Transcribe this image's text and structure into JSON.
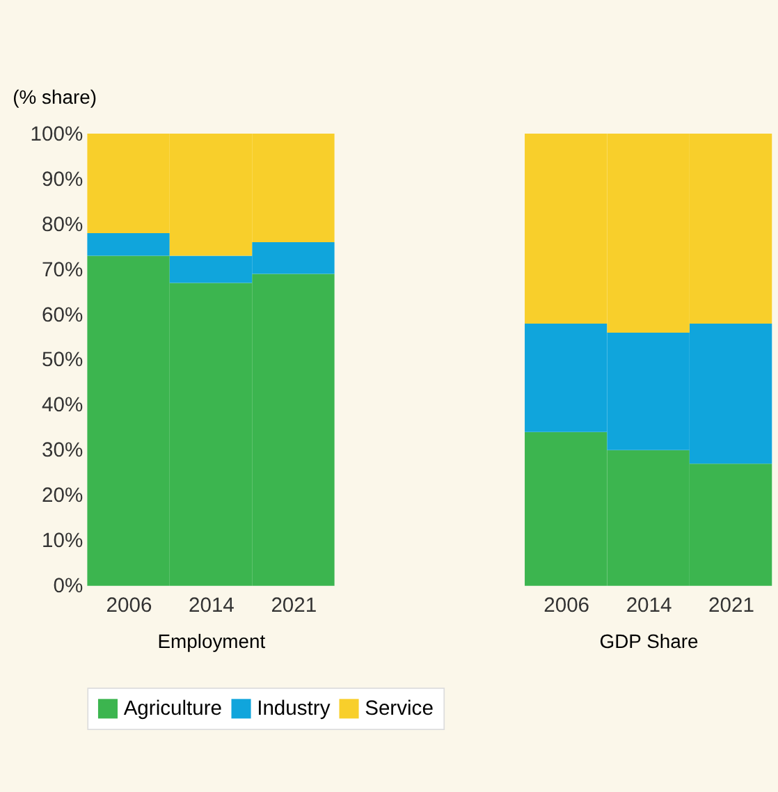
{
  "chart_data": [
    {
      "type": "bar",
      "stacked": true,
      "ylabel": "(% share)",
      "xlabel": "Employment",
      "categories": [
        "2006",
        "2014",
        "2021"
      ],
      "series": [
        {
          "name": "Agriculture",
          "color": "#3cb54f",
          "values": [
            73,
            67,
            69
          ]
        },
        {
          "name": "Industry",
          "color": "#10a5dc",
          "values": [
            5,
            6,
            7
          ]
        },
        {
          "name": "Service",
          "color": "#f8cf2b",
          "values": [
            22,
            27,
            24
          ]
        }
      ],
      "ylim": [
        0,
        100
      ],
      "yticks": [
        {
          "value": 0,
          "label": "0%"
        },
        {
          "value": 10,
          "label": "10%"
        },
        {
          "value": 20,
          "label": "20%"
        },
        {
          "value": 30,
          "label": "30%"
        },
        {
          "value": 40,
          "label": "40%"
        },
        {
          "value": 50,
          "label": "50%"
        },
        {
          "value": 60,
          "label": "60%"
        },
        {
          "value": 70,
          "label": "70%"
        },
        {
          "value": 80,
          "label": "80%"
        },
        {
          "value": 90,
          "label": "90%"
        },
        {
          "value": 100,
          "label": "100%"
        }
      ],
      "grid": false,
      "legend": "bottom"
    },
    {
      "type": "bar",
      "stacked": true,
      "xlabel": "GDP Share",
      "categories": [
        "2006",
        "2014",
        "2021"
      ],
      "series": [
        {
          "color": "#3cb54f",
          "values": [
            34,
            30,
            27
          ]
        },
        {
          "color": "#10a5dc",
          "values": [
            24,
            26,
            31
          ]
        },
        {
          "color": "#f8cf2b",
          "values": [
            42,
            44,
            42
          ]
        }
      ],
      "ylim": [
        0,
        100
      ],
      "tick_labels": "x",
      "grid": false
    }
  ]
}
